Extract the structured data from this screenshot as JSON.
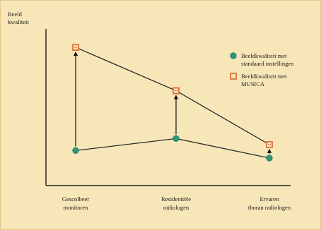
{
  "chart_data": {
    "type": "line",
    "ylabel": "Beeld kwaliteit",
    "categories": [
      "Gescolbeer monitoren",
      "Residentiële radiologen",
      "Ervaren thoran radiologen"
    ],
    "category_lines": [
      [
        "Gescolbeer",
        "monitoren"
      ],
      [
        "Residentiële",
        "radiologen"
      ],
      [
        "Ervaren",
        "thoran radiologen"
      ]
    ],
    "ylabel_lines": [
      "Beeld",
      "kwaliteit"
    ],
    "ylim": [
      0,
      100
    ],
    "grid": false,
    "legend_position": "right",
    "series": [
      {
        "name": "Beeldkwaliteit met standaard instellingen",
        "name_lines": [
          "Beeldkwaliteit met",
          "standaard instellingen"
        ],
        "values": [
          22,
          30,
          17
        ],
        "color": "#2a9a7c",
        "marker": "circle"
      },
      {
        "name": "Beeldkwaliteit met MUSICA",
        "name_lines": [
          "Beeldkwaliteit met",
          "MUSICA"
        ],
        "values": [
          91,
          62,
          26
        ],
        "color": "#e0703a",
        "marker": "square"
      }
    ],
    "arrows": "upward arrows from standaard to MUSICA at each category"
  }
}
